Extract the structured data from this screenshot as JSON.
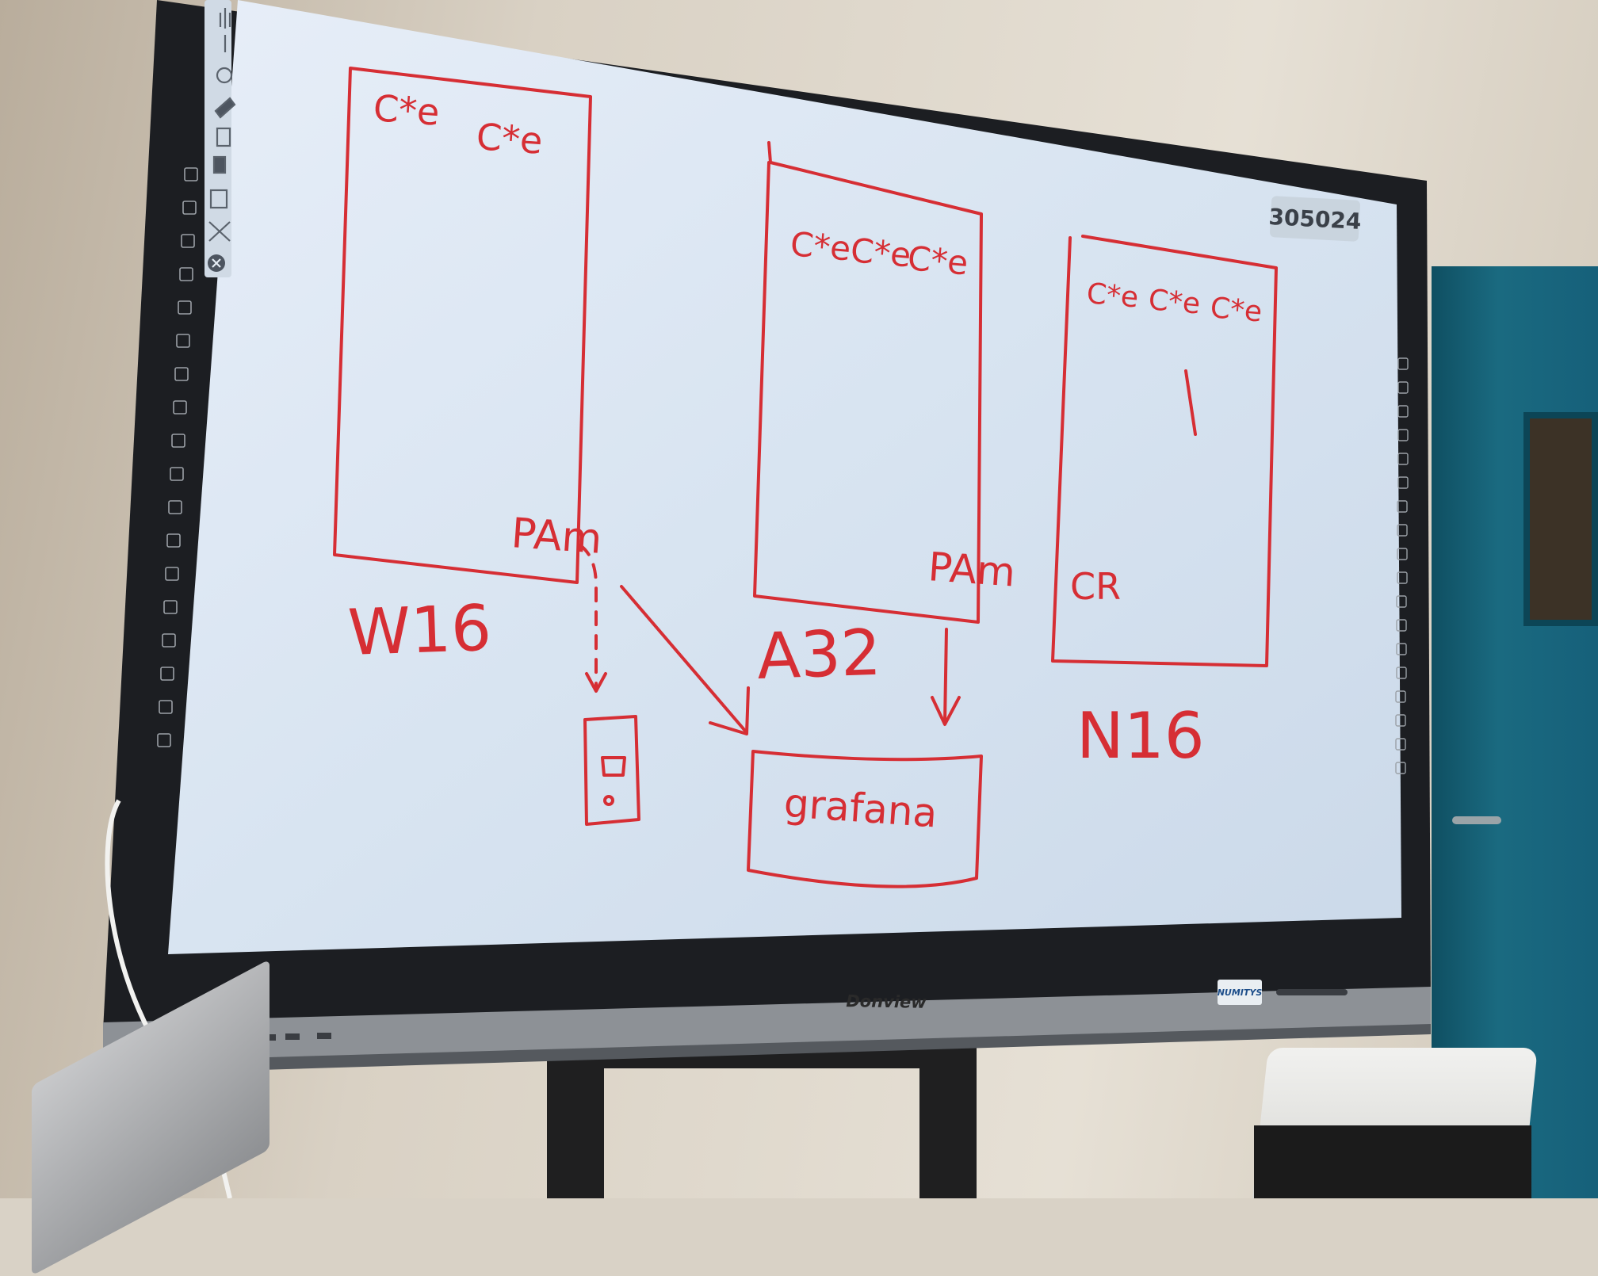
{
  "whiteboard": {
    "counter": "305024",
    "boxes": [
      {
        "label": "W16",
        "top_marks": [
          "C*e",
          "C*e"
        ],
        "corner_note": "PAm"
      },
      {
        "label": "A32",
        "top_marks": [
          "C*e",
          "C*e",
          "C*e"
        ],
        "corner_note": "PAm"
      },
      {
        "label": "N16",
        "top_marks": [
          "C*e",
          "C*e",
          "C*e"
        ],
        "corner_note": "CR"
      }
    ],
    "sink_label": "grafana"
  },
  "monitor": {
    "brand": "Donview",
    "badge": "NUMITYS"
  },
  "colors": {
    "ink": "#d62e34",
    "screen": "#dbe6f3",
    "bezel": "#1c1e22",
    "door": "#16607a"
  },
  "toolbar_icons": [
    "hand-icon",
    "pen-icon",
    "brush-icon",
    "eraser-icon",
    "add-page-icon",
    "page-icon",
    "settings-icon",
    "tools-icon",
    "close-icon"
  ]
}
